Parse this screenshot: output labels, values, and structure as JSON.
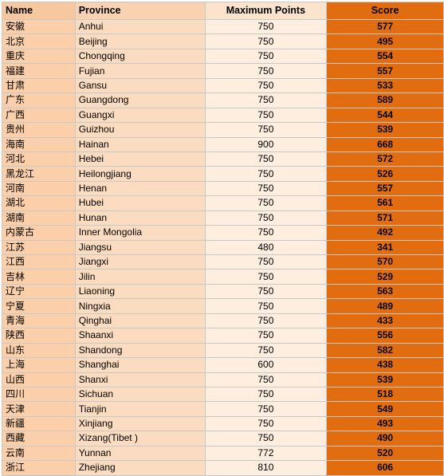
{
  "table": {
    "headers": [
      "Name",
      "Province",
      "Maximum Points",
      "Score"
    ],
    "rows": [
      [
        "安徽",
        "Anhui",
        "750",
        "577"
      ],
      [
        "北京",
        "Beijing",
        "750",
        "495"
      ],
      [
        "重庆",
        "Chongqing",
        "750",
        "554"
      ],
      [
        "福建",
        "Fujian",
        "750",
        "557"
      ],
      [
        "甘肃",
        "Gansu",
        "750",
        "533"
      ],
      [
        "广东",
        "Guangdong",
        "750",
        "589"
      ],
      [
        "广西",
        "Guangxi",
        "750",
        "544"
      ],
      [
        "贵州",
        "Guizhou",
        "750",
        "539"
      ],
      [
        "海南",
        "Hainan",
        "900",
        "668"
      ],
      [
        "河北",
        "Hebei",
        "750",
        "572"
      ],
      [
        "黑龙江",
        "Heilongjiang",
        "750",
        "526"
      ],
      [
        "河南",
        "Henan",
        "750",
        "557"
      ],
      [
        "湖北",
        "Hubei",
        "750",
        "561"
      ],
      [
        "湖南",
        "Hunan",
        "750",
        "571"
      ],
      [
        "内蒙古",
        "Inner Mongolia",
        "750",
        "492"
      ],
      [
        "江苏",
        "Jiangsu",
        "480",
        "341"
      ],
      [
        "江西",
        "Jiangxi",
        "750",
        "570"
      ],
      [
        "吉林",
        "Jilin",
        "750",
        "529"
      ],
      [
        "辽宁",
        "Liaoning",
        "750",
        "563"
      ],
      [
        "宁夏",
        "Ningxia",
        "750",
        "489"
      ],
      [
        "青海",
        "Qinghai",
        "750",
        "433"
      ],
      [
        "陕西",
        "Shaanxi",
        "750",
        "556"
      ],
      [
        "山东",
        "Shandong",
        "750",
        "582"
      ],
      [
        "上海",
        "Shanghai",
        "600",
        "438"
      ],
      [
        "山西",
        "Shanxi",
        "750",
        "539"
      ],
      [
        "四川",
        "Sichuan",
        "750",
        "518"
      ],
      [
        "天津",
        "Tianjin",
        "750",
        "549"
      ],
      [
        "新疆",
        "Xinjiang",
        "750",
        "493"
      ],
      [
        "西藏",
        "Xizang(Tibet )",
        "750",
        "490"
      ],
      [
        "云南",
        "Yunnan",
        "772",
        "520"
      ],
      [
        "浙江",
        "Zhejiang",
        "810",
        "606"
      ]
    ]
  },
  "colors": {
    "name_col": "#fbcfa9",
    "province_col": "#fcdcc0",
    "max_col": "#fdeee0",
    "score_col": "#e26d10",
    "border": "#c8c8c8"
  }
}
